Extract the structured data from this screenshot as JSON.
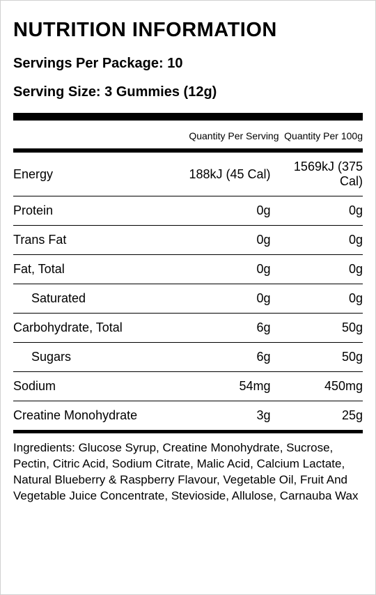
{
  "title": "NUTRITION INFORMATION",
  "servings_per_package": "Servings Per Package: 10",
  "serving_size": "Serving Size: 3 Gummies (12g)",
  "columns": {
    "label": "",
    "per_serving": "Quantity Per Serving",
    "per_100g": "Quantity Per 100g"
  },
  "rows": [
    {
      "label": "Energy",
      "per_serving": "188kJ (45 Cal)",
      "per_100g": "1569kJ (375 Cal)",
      "indent": false
    },
    {
      "label": "Protein",
      "per_serving": "0g",
      "per_100g": "0g",
      "indent": false
    },
    {
      "label": "Trans Fat",
      "per_serving": "0g",
      "per_100g": "0g",
      "indent": false
    },
    {
      "label": "Fat, Total",
      "per_serving": "0g",
      "per_100g": "0g",
      "indent": false
    },
    {
      "label": "Saturated",
      "per_serving": "0g",
      "per_100g": "0g",
      "indent": true
    },
    {
      "label": "Carbohydrate, Total",
      "per_serving": "6g",
      "per_100g": "50g",
      "indent": false
    },
    {
      "label": "Sugars",
      "per_serving": "6g",
      "per_100g": "50g",
      "indent": true
    },
    {
      "label": "Sodium",
      "per_serving": "54mg",
      "per_100g": "450mg",
      "indent": false
    },
    {
      "label": "Creatine Monohydrate",
      "per_serving": "3g",
      "per_100g": "25g",
      "indent": false
    }
  ],
  "ingredients_label": "Ingredients: ",
  "ingredients": "Glucose Syrup, Creatine Monohydrate, Sucrose, Pectin, Citric Acid, Sodium Citrate, Malic Acid, Calcium Lactate, Natural Blueberry & Raspberry Flavour, Vegetable Oil, Fruit And Vegetable Juice Concentrate, Stevioside, Allulose, Carnauba Wax",
  "col_widths": [
    "44%",
    "32%",
    "24%"
  ]
}
